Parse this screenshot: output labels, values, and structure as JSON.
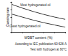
{
  "chart_data": {
    "type": "line",
    "y_label": "Gassing rate",
    "x_label": "WDBT content (%)",
    "x": [
      0,
      2,
      4,
      6,
      8,
      10
    ],
    "series": [
      {
        "name": "Most hydrogenated oil",
        "color": "#333333",
        "values": [
          34,
          24,
          15,
          7,
          0,
          -6
        ]
      },
      {
        "name": "Least hydrogenated oil",
        "color": "#333333",
        "values": [
          8,
          0,
          -8,
          -15,
          -21,
          -27
        ]
      }
    ],
    "xlim": [
      0,
      10
    ],
    "xticks": [
      0,
      2,
      4,
      6,
      8,
      10
    ],
    "ylim": [
      -40,
      40
    ],
    "yticks": [
      -40,
      -20,
      0,
      20,
      40
    ],
    "grid": false,
    "tick_labels": false,
    "annotations": [
      "According to IEC publication 60 628-A",
      "Test with hydrogen at 80°C"
    ]
  }
}
